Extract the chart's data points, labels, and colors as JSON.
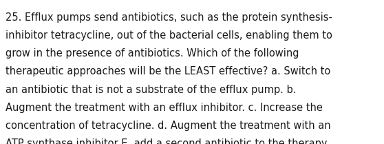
{
  "lines": [
    "25. Efflux pumps send antibiotics, such as the protein synthesis-",
    "inhibitor tetracycline, out of the bacterial cells, enabling them to",
    "grow in the presence of antibiotics. Which of the following",
    "therapeutic approaches will be the LEAST effective? a. Switch to",
    "an antibiotic that is not a substrate of the efflux pump. b.",
    "Augment the treatment with an efflux inhibitor. c. Increase the",
    "concentration of tetracycline. d. Augment the treatment with an",
    "ATP synthase inhibitor E. add a second antibiotic to the therapy"
  ],
  "background_color": "#ffffff",
  "text_color": "#1a1a1a",
  "font_size": 10.5,
  "fig_width": 5.58,
  "fig_height": 2.09,
  "dpi": 100
}
